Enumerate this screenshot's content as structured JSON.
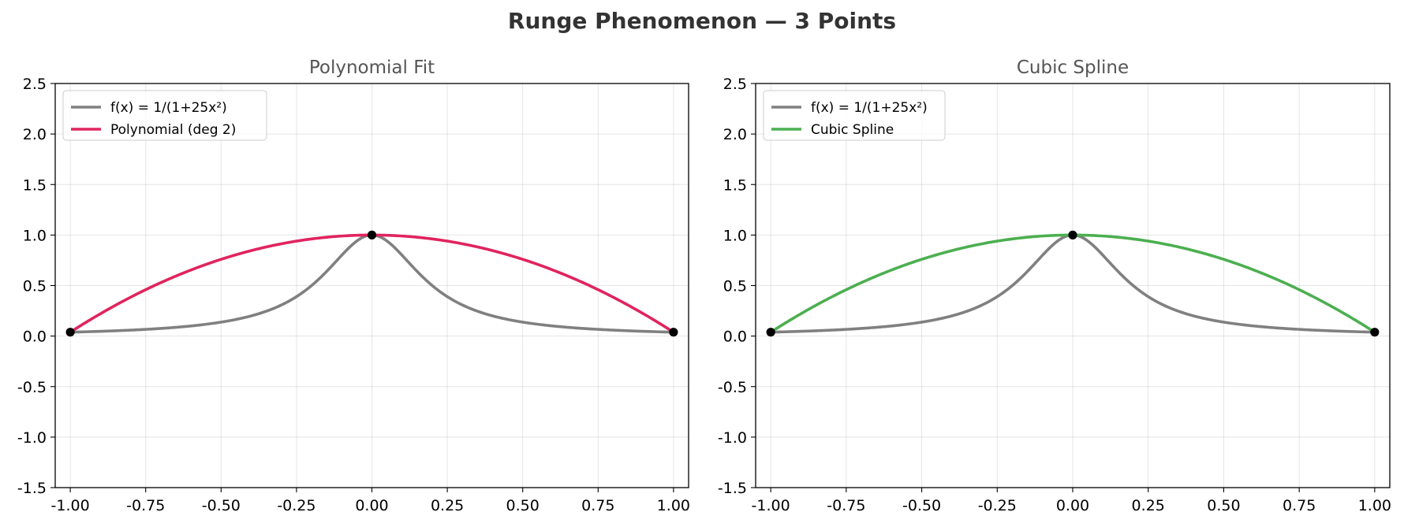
{
  "title": "Runge Phenomenon  —  3 Points",
  "colors": {
    "function": "#808080",
    "polynomial": "#e0245e",
    "spline": "#4caf50",
    "points": "#000000"
  },
  "chart_data": [
    {
      "type": "line",
      "title": "Polynomial Fit",
      "xlim": [
        -1.05,
        1.05
      ],
      "ylim": [
        -1.5,
        2.5
      ],
      "xticks": [
        -1.0,
        -0.75,
        -0.5,
        -0.25,
        0.0,
        0.25,
        0.5,
        0.75,
        1.0
      ],
      "xtick_labels": [
        "-1.00",
        "-0.75",
        "-0.50",
        "-0.25",
        "0.00",
        "0.25",
        "0.50",
        "0.75",
        "1.00"
      ],
      "yticks": [
        -1.5,
        -1.0,
        -0.5,
        0.0,
        0.5,
        1.0,
        1.5,
        2.0,
        2.5
      ],
      "ytick_labels": [
        "-1.5",
        "-1.0",
        "-0.5",
        "0.0",
        "0.5",
        "1.0",
        "1.5",
        "2.0",
        "2.5"
      ],
      "grid": true,
      "legend_position": "top-left",
      "series": [
        {
          "name": "f(x) = 1/(1+25x²)",
          "kind": "function",
          "expression": "1/(1+25x^2)",
          "domain": [
            -1,
            1
          ],
          "color": "#808080"
        },
        {
          "name": "Polynomial (deg 2)",
          "kind": "quadratic",
          "expression": "1 - (25/26)x^2",
          "domain": [
            -1,
            1
          ],
          "color": "#e0245e"
        }
      ],
      "points": {
        "x": [
          -1.0,
          0.0,
          1.0
        ],
        "y": [
          0.0385,
          1.0,
          0.0385
        ],
        "color": "#000000"
      }
    },
    {
      "type": "line",
      "title": "Cubic Spline",
      "xlim": [
        -1.05,
        1.05
      ],
      "ylim": [
        -1.5,
        2.5
      ],
      "xticks": [
        -1.0,
        -0.75,
        -0.5,
        -0.25,
        0.0,
        0.25,
        0.5,
        0.75,
        1.0
      ],
      "xtick_labels": [
        "-1.00",
        "-0.75",
        "-0.50",
        "-0.25",
        "0.00",
        "0.25",
        "0.50",
        "0.75",
        "1.00"
      ],
      "yticks": [
        -1.5,
        -1.0,
        -0.5,
        0.0,
        0.5,
        1.0,
        1.5,
        2.0,
        2.5
      ],
      "ytick_labels": [
        "-1.5",
        "-1.0",
        "-0.5",
        "0.0",
        "0.5",
        "1.0",
        "1.5",
        "2.0",
        "2.5"
      ],
      "grid": true,
      "legend_position": "top-left",
      "series": [
        {
          "name": "f(x) = 1/(1+25x²)",
          "kind": "function",
          "expression": "1/(1+25x^2)",
          "domain": [
            -1,
            1
          ],
          "color": "#808080"
        },
        {
          "name": "Cubic Spline",
          "kind": "quadratic",
          "expression": "1 - (25/26)x^2",
          "domain": [
            -1,
            1
          ],
          "color": "#4caf50"
        }
      ],
      "points": {
        "x": [
          -1.0,
          0.0,
          1.0
        ],
        "y": [
          0.0385,
          1.0,
          0.0385
        ],
        "color": "#000000"
      }
    }
  ]
}
